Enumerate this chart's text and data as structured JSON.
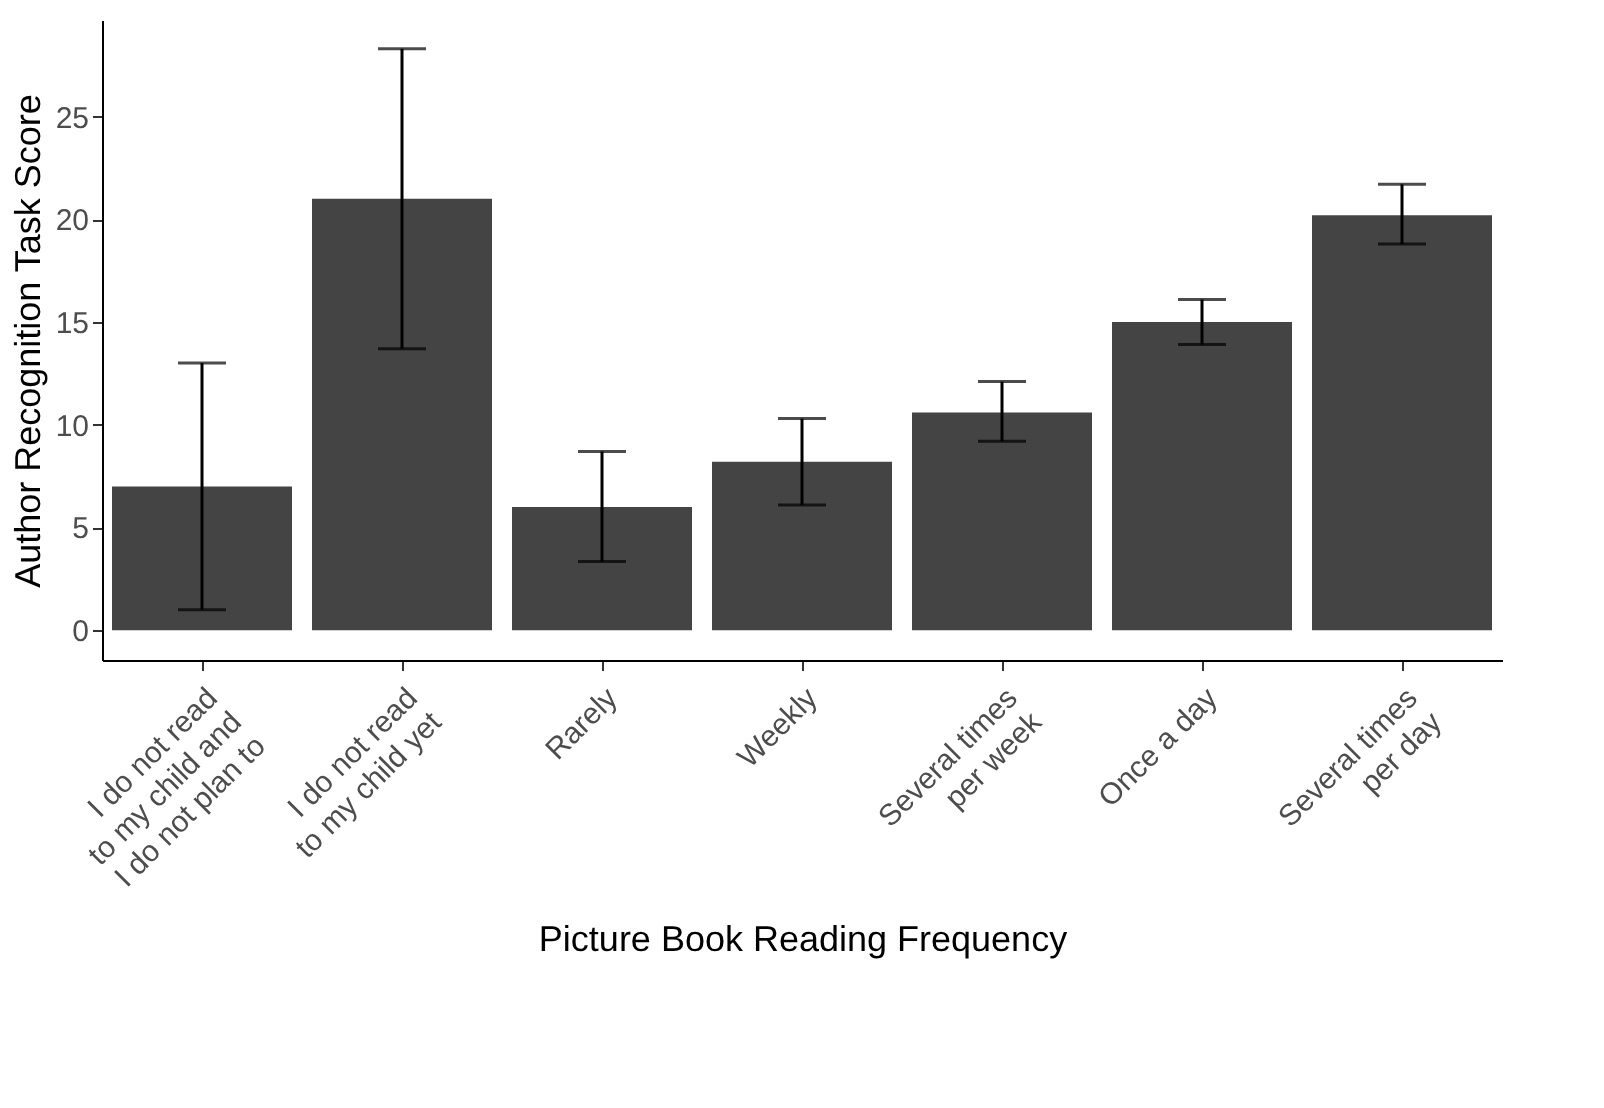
{
  "chart_data": {
    "type": "bar",
    "xlabel": "Picture Book Reading Frequency",
    "ylabel": "Author Recognition Task Score",
    "categories": [
      "I do not read\nto my child and\nI do not plan to",
      "I do not read\nto my child yet",
      "Rarely",
      "Weekly",
      "Several times\nper week",
      "Once a day",
      "Several times\nper day"
    ],
    "values": [
      7.0,
      21.0,
      6.0,
      8.2,
      10.6,
      15.0,
      20.2
    ],
    "errors": [
      [
        1.0,
        13.0
      ],
      [
        13.7,
        28.3
      ],
      [
        3.35,
        8.7
      ],
      [
        6.1,
        10.3
      ],
      [
        9.2,
        12.1
      ],
      [
        13.9,
        16.1
      ],
      [
        18.8,
        21.7
      ]
    ],
    "color": "#444444",
    "ylim": [
      -1.45,
      29.7
    ],
    "yticks": [
      0,
      5,
      10,
      15,
      20,
      25
    ],
    "grid": false
  }
}
